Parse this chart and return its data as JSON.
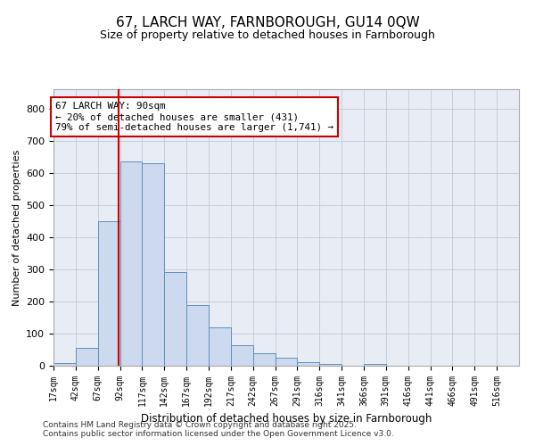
{
  "title1": "67, LARCH WAY, FARNBOROUGH, GU14 0QW",
  "title2": "Size of property relative to detached houses in Farnborough",
  "xlabel": "Distribution of detached houses by size in Farnborough",
  "ylabel": "Number of detached properties",
  "bin_labels": [
    "17sqm",
    "42sqm",
    "67sqm",
    "92sqm",
    "117sqm",
    "142sqm",
    "167sqm",
    "192sqm",
    "217sqm",
    "242sqm",
    "267sqm",
    "291sqm",
    "316sqm",
    "341sqm",
    "366sqm",
    "391sqm",
    "416sqm",
    "441sqm",
    "466sqm",
    "491sqm",
    "516sqm"
  ],
  "bin_values": [
    8,
    55,
    450,
    635,
    630,
    290,
    190,
    120,
    65,
    40,
    25,
    10,
    5,
    0,
    5,
    0,
    0,
    0,
    0,
    0,
    0
  ],
  "bin_width": 25,
  "bar_fill": "#ccd9ee",
  "bar_edge": "#6090bb",
  "vline_x": 90,
  "vline_color": "#cc0000",
  "annotation_text": "67 LARCH WAY: 90sqm\n← 20% of detached houses are smaller (431)\n79% of semi-detached houses are larger (1,741) →",
  "annotation_box_edgecolor": "#cc0000",
  "annotation_box_facecolor": "#ffffff",
  "ylim": [
    0,
    860
  ],
  "yticks": [
    0,
    100,
    200,
    300,
    400,
    500,
    600,
    700,
    800
  ],
  "grid_color": "#c0c8d8",
  "bg_color": "#e8edf5",
  "footer1": "Contains HM Land Registry data © Crown copyright and database right 2025.",
  "footer2": "Contains public sector information licensed under the Open Government Licence v3.0."
}
